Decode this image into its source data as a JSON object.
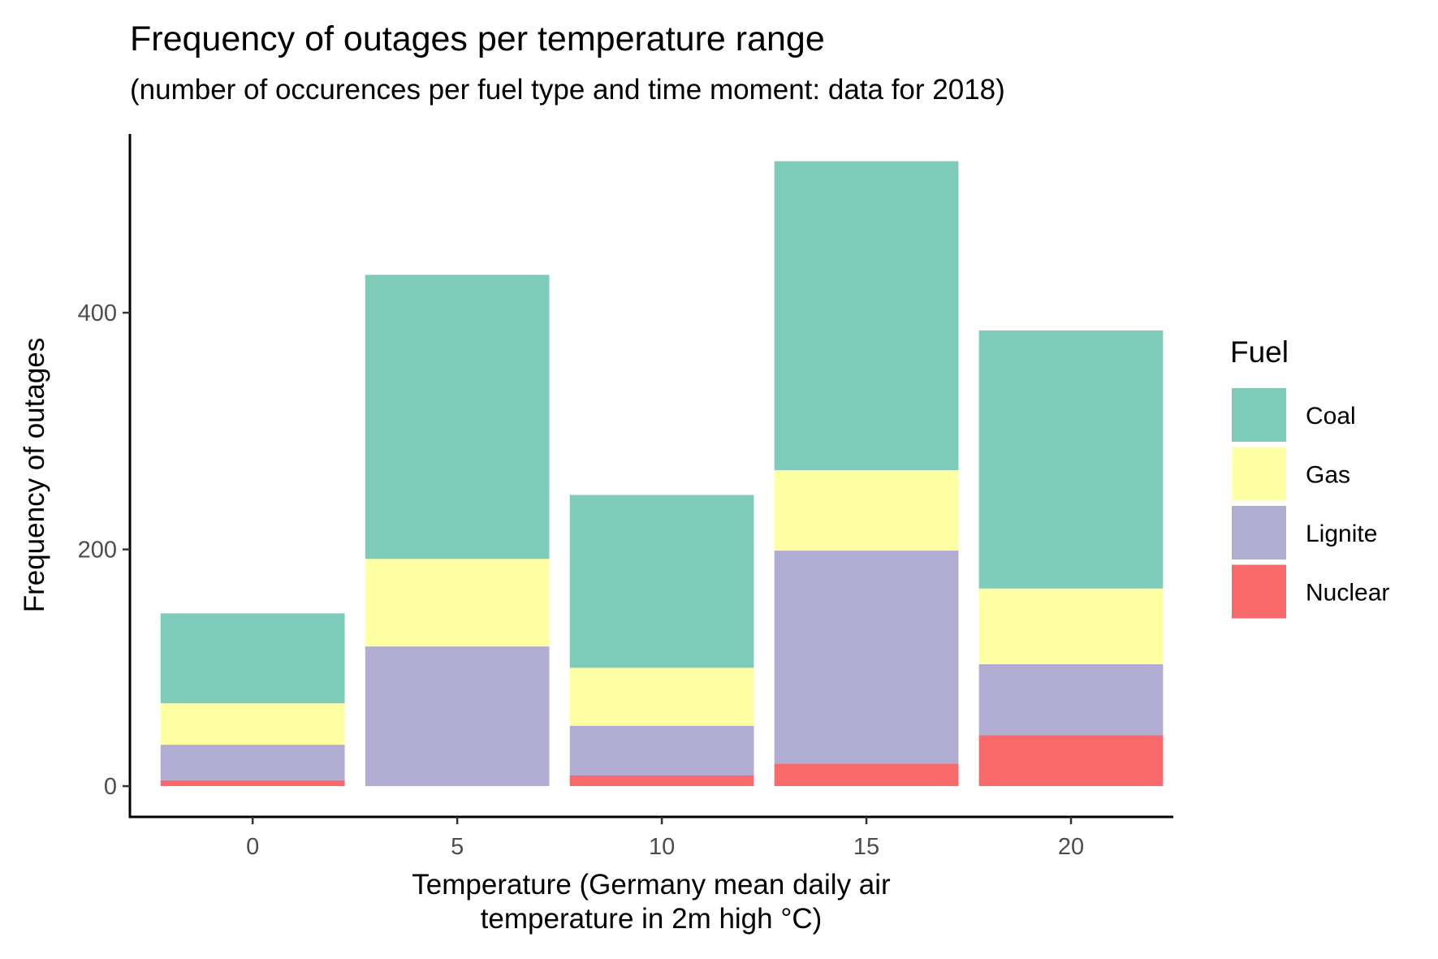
{
  "chart_data": {
    "type": "bar",
    "stacked": true,
    "title": "Frequency of outages per temperature range",
    "subtitle": "(number of occurences per fuel type and time moment: data for 2018)",
    "xlabel_lines": [
      "Temperature (Germany mean daily air",
      "temperature in 2m high °C)"
    ],
    "ylabel": "Frequency of outages",
    "x": [
      0,
      5,
      10,
      15,
      20
    ],
    "x_ticks": [
      0,
      5,
      10,
      15,
      20
    ],
    "y_ticks": [
      0,
      200,
      400
    ],
    "xlim": [
      -3,
      22.5
    ],
    "ylim": [
      -26,
      551
    ],
    "grid": false,
    "legend": {
      "title": "Fuel",
      "position": "right"
    },
    "series": [
      {
        "name": "Nuclear",
        "color": "#F8696B",
        "values": [
          5,
          0,
          9,
          19,
          43
        ]
      },
      {
        "name": "Lignite",
        "color": "#B1ACD1",
        "values": [
          30,
          118,
          42,
          180,
          60
        ]
      },
      {
        "name": "Gas",
        "color": "#FFFFA3",
        "values": [
          35,
          74,
          49,
          68,
          64
        ]
      },
      {
        "name": "Coal",
        "color": "#7ECBBA",
        "values": [
          76,
          240,
          146,
          261,
          218
        ]
      }
    ],
    "legend_order": [
      "Coal",
      "Gas",
      "Lignite",
      "Nuclear"
    ]
  }
}
